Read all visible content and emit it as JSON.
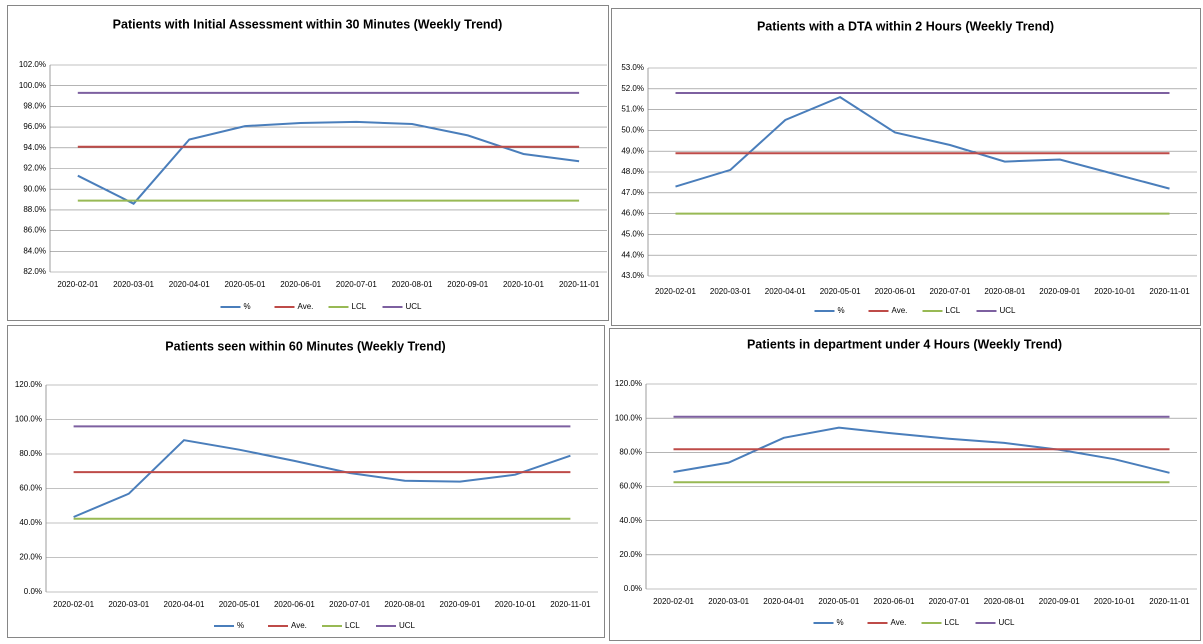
{
  "chart_data": [
    {
      "type": "line",
      "title": "Patients with Initial Assessment within 30 Minutes (Weekly Trend)",
      "categories": [
        "2020-02-01",
        "2020-03-01",
        "2020-04-01",
        "2020-05-01",
        "2020-06-01",
        "2020-07-01",
        "2020-08-01",
        "2020-09-01",
        "2020-10-01",
        "2020-11-01"
      ],
      "series": [
        {
          "name": "%",
          "color": "#4a7ebb",
          "values": [
            91.3,
            88.6,
            94.8,
            96.1,
            96.4,
            96.5,
            96.3,
            95.2,
            93.4,
            92.7
          ]
        },
        {
          "name": "Ave.",
          "color": "#be4b48",
          "values": [
            94.1,
            94.1,
            94.1,
            94.1,
            94.1,
            94.1,
            94.1,
            94.1,
            94.1,
            94.1
          ]
        },
        {
          "name": "LCL",
          "color": "#98b954",
          "values": [
            88.9,
            88.9,
            88.9,
            88.9,
            88.9,
            88.9,
            88.9,
            88.9,
            88.9,
            88.9
          ]
        },
        {
          "name": "UCL",
          "color": "#7d60a0",
          "values": [
            99.3,
            99.3,
            99.3,
            99.3,
            99.3,
            99.3,
            99.3,
            99.3,
            99.3,
            99.3
          ]
        }
      ],
      "ylim": [
        82,
        102
      ],
      "yticks": [
        {
          "value": 82,
          "label": "82.0%"
        },
        {
          "value": 84,
          "label": "84.0%"
        },
        {
          "value": 86,
          "label": "86.0%"
        },
        {
          "value": 88,
          "label": "88.0%"
        },
        {
          "value": 90,
          "label": "90.0%"
        },
        {
          "value": 92,
          "label": "92.0%"
        },
        {
          "value": 94,
          "label": "94.0%"
        },
        {
          "value": 96,
          "label": "96.0%"
        },
        {
          "value": 98,
          "label": "98.0%"
        },
        {
          "value": 100,
          "label": "100.0%"
        },
        {
          "value": 102,
          "label": "102.0%"
        }
      ],
      "grid": true,
      "legend": "bottom"
    },
    {
      "type": "line",
      "title": "Patients with a DTA within 2 Hours (Weekly Trend)",
      "categories": [
        "2020-02-01",
        "2020-03-01",
        "2020-04-01",
        "2020-05-01",
        "2020-06-01",
        "2020-07-01",
        "2020-08-01",
        "2020-09-01",
        "2020-10-01",
        "2020-11-01"
      ],
      "series": [
        {
          "name": "%",
          "color": "#4a7ebb",
          "values": [
            47.3,
            48.1,
            50.5,
            51.6,
            49.9,
            49.3,
            48.5,
            48.6,
            47.9,
            47.2
          ]
        },
        {
          "name": "Ave.",
          "color": "#be4b48",
          "values": [
            48.9,
            48.9,
            48.9,
            48.9,
            48.9,
            48.9,
            48.9,
            48.9,
            48.9,
            48.9
          ]
        },
        {
          "name": "LCL",
          "color": "#98b954",
          "values": [
            46.0,
            46.0,
            46.0,
            46.0,
            46.0,
            46.0,
            46.0,
            46.0,
            46.0,
            46.0
          ]
        },
        {
          "name": "UCL",
          "color": "#7d60a0",
          "values": [
            51.8,
            51.8,
            51.8,
            51.8,
            51.8,
            51.8,
            51.8,
            51.8,
            51.8,
            51.8
          ]
        }
      ],
      "ylim": [
        43,
        53
      ],
      "yticks": [
        {
          "value": 43,
          "label": "43.0%"
        },
        {
          "value": 44,
          "label": "44.0%"
        },
        {
          "value": 45,
          "label": "45.0%"
        },
        {
          "value": 46,
          "label": "46.0%"
        },
        {
          "value": 47,
          "label": "47.0%"
        },
        {
          "value": 48,
          "label": "48.0%"
        },
        {
          "value": 49,
          "label": "49.0%"
        },
        {
          "value": 50,
          "label": "50.0%"
        },
        {
          "value": 51,
          "label": "51.0%"
        },
        {
          "value": 52,
          "label": "52.0%"
        },
        {
          "value": 53,
          "label": "53.0%"
        }
      ],
      "grid": true,
      "legend": "bottom"
    },
    {
      "type": "line",
      "title": "Patients seen within 60 Minutes (Weekly Trend)",
      "categories": [
        "2020-02-01",
        "2020-03-01",
        "2020-04-01",
        "2020-05-01",
        "2020-06-01",
        "2020-07-01",
        "2020-08-01",
        "2020-09-01",
        "2020-10-01",
        "2020-11-01"
      ],
      "series": [
        {
          "name": "%",
          "color": "#4a7ebb",
          "values": [
            43.5,
            57,
            88,
            82.5,
            76,
            69,
            64.5,
            64,
            68,
            79
          ]
        },
        {
          "name": "Ave.",
          "color": "#be4b48",
          "values": [
            69.5,
            69.5,
            69.5,
            69.5,
            69.5,
            69.5,
            69.5,
            69.5,
            69.5,
            69.5
          ]
        },
        {
          "name": "LCL",
          "color": "#98b954",
          "values": [
            42.5,
            42.5,
            42.5,
            42.5,
            42.5,
            42.5,
            42.5,
            42.5,
            42.5,
            42.5
          ]
        },
        {
          "name": "UCL",
          "color": "#7d60a0",
          "values": [
            96,
            96,
            96,
            96,
            96,
            96,
            96,
            96,
            96,
            96
          ]
        }
      ],
      "ylim": [
        0,
        120
      ],
      "yticks": [
        {
          "value": 0,
          "label": "0.0%"
        },
        {
          "value": 20,
          "label": "20.0%"
        },
        {
          "value": 40,
          "label": "40.0%"
        },
        {
          "value": 60,
          "label": "60.0%"
        },
        {
          "value": 80,
          "label": "80.0%"
        },
        {
          "value": 100,
          "label": "100.0%"
        },
        {
          "value": 120,
          "label": "120.0%"
        }
      ],
      "grid": true,
      "legend": "bottom"
    },
    {
      "type": "line",
      "title": "Patients in department under 4 Hours (Weekly Trend)",
      "categories": [
        "2020-02-01",
        "2020-03-01",
        "2020-04-01",
        "2020-05-01",
        "2020-06-01",
        "2020-07-01",
        "2020-08-01",
        "2020-09-01",
        "2020-10-01",
        "2020-11-01"
      ],
      "series": [
        {
          "name": "%",
          "color": "#4a7ebb",
          "values": [
            68.5,
            74,
            88.5,
            94.5,
            91,
            88,
            85.5,
            81.5,
            76,
            68
          ]
        },
        {
          "name": "Ave.",
          "color": "#be4b48",
          "values": [
            81.8,
            81.8,
            81.8,
            81.8,
            81.8,
            81.8,
            81.8,
            81.8,
            81.8,
            81.8
          ]
        },
        {
          "name": "LCL",
          "color": "#98b954",
          "values": [
            62.5,
            62.5,
            62.5,
            62.5,
            62.5,
            62.5,
            62.5,
            62.5,
            62.5,
            62.5
          ]
        },
        {
          "name": "UCL",
          "color": "#7d60a0",
          "values": [
            100.8,
            100.8,
            100.8,
            100.8,
            100.8,
            100.8,
            100.8,
            100.8,
            100.8,
            100.8
          ]
        }
      ],
      "ylim": [
        0,
        120
      ],
      "yticks": [
        {
          "value": 0,
          "label": "0.0%"
        },
        {
          "value": 20,
          "label": "20.0%"
        },
        {
          "value": 40,
          "label": "40.0%"
        },
        {
          "value": 60,
          "label": "60.0%"
        },
        {
          "value": 80,
          "label": "80.0%"
        },
        {
          "value": 100,
          "label": "100.0%"
        },
        {
          "value": 120,
          "label": "120.0%"
        }
      ],
      "grid": true,
      "legend": "bottom"
    }
  ]
}
